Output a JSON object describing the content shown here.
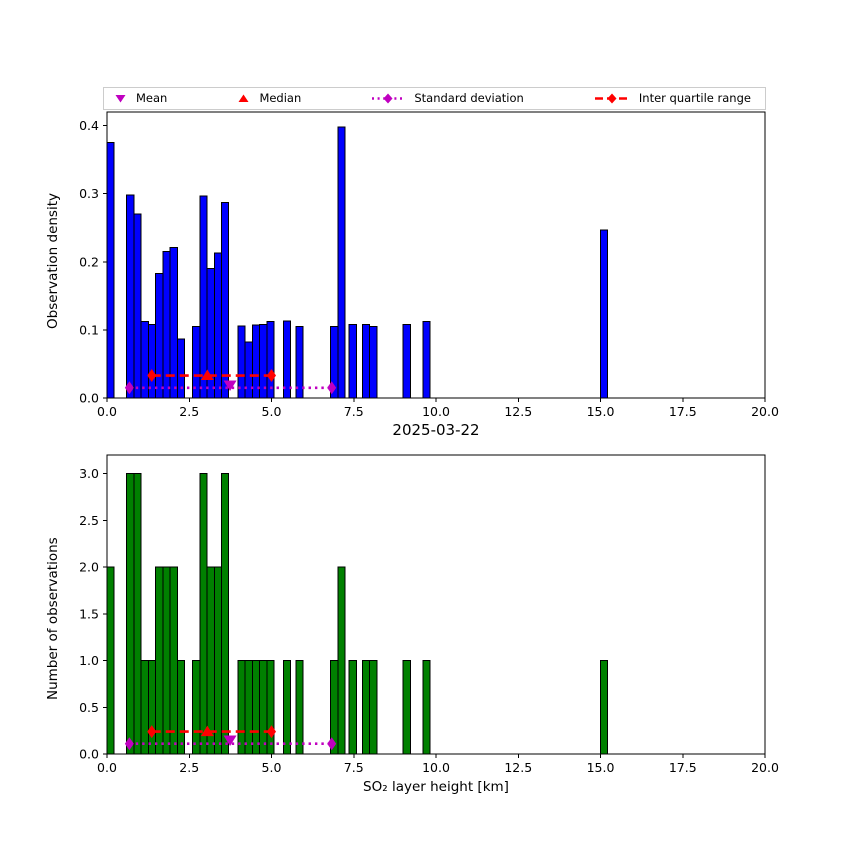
{
  "figure": {
    "background": "#ffffff",
    "title": "2025-03-22"
  },
  "legend": {
    "items": [
      {
        "label": "Mean",
        "icon": "triangle-down-icon",
        "color": "#c000c0"
      },
      {
        "label": "Median",
        "icon": "triangle-up-icon",
        "color": "#ff0000"
      },
      {
        "label": "Standard deviation",
        "icon": "diamond-dotted-line-icon",
        "color": "#c000c0"
      },
      {
        "label": "Inter quartile range",
        "icon": "diamond-dashed-line-icon",
        "color": "#ff0000"
      }
    ]
  },
  "chart_data": [
    {
      "type": "bar",
      "id": "density",
      "ylabel": "Observation density",
      "bar_color": "#0000ff",
      "bar_edge_color": "#000000",
      "bin_width_km": 0.22,
      "xlim": [
        0,
        20
      ],
      "ylim": [
        0,
        0.42
      ],
      "xticks": [
        0,
        2.5,
        5,
        7.5,
        10,
        12.5,
        15,
        17.5,
        20
      ],
      "xtick_labels": [
        "0.0",
        "2.5",
        "5.0",
        "7.5",
        "10.0",
        "12.5",
        "15.0",
        "17.5",
        "20.0"
      ],
      "yticks": [
        0,
        0.1,
        0.2,
        0.3,
        0.4
      ],
      "ytick_labels": [
        "0.0",
        "0.1",
        "0.2",
        "0.3",
        "0.4"
      ],
      "grid": false,
      "bars": [
        {
          "x": 0.0,
          "h": 0.375
        },
        {
          "x": 0.6,
          "h": 0.298
        },
        {
          "x": 0.82,
          "h": 0.27
        },
        {
          "x": 1.04,
          "h": 0.112
        },
        {
          "x": 1.26,
          "h": 0.108
        },
        {
          "x": 1.48,
          "h": 0.183
        },
        {
          "x": 1.7,
          "h": 0.215
        },
        {
          "x": 1.92,
          "h": 0.221
        },
        {
          "x": 2.14,
          "h": 0.087
        },
        {
          "x": 2.6,
          "h": 0.105
        },
        {
          "x": 2.82,
          "h": 0.297
        },
        {
          "x": 3.04,
          "h": 0.19
        },
        {
          "x": 3.26,
          "h": 0.213
        },
        {
          "x": 3.48,
          "h": 0.287
        },
        {
          "x": 3.98,
          "h": 0.106
        },
        {
          "x": 4.2,
          "h": 0.082
        },
        {
          "x": 4.42,
          "h": 0.107
        },
        {
          "x": 4.64,
          "h": 0.108
        },
        {
          "x": 4.86,
          "h": 0.112
        },
        {
          "x": 5.36,
          "h": 0.113
        },
        {
          "x": 5.74,
          "h": 0.105
        },
        {
          "x": 6.8,
          "h": 0.105
        },
        {
          "x": 7.02,
          "h": 0.398
        },
        {
          "x": 7.36,
          "h": 0.108
        },
        {
          "x": 7.76,
          "h": 0.108
        },
        {
          "x": 7.98,
          "h": 0.105
        },
        {
          "x": 9.0,
          "h": 0.108
        },
        {
          "x": 9.6,
          "h": 0.112
        },
        {
          "x": 15.0,
          "h": 0.247
        }
      ],
      "overlay": {
        "mean_km": 3.74,
        "mean_y": 0.019,
        "median_km": 3.05,
        "median_y": 0.033,
        "std_range_km": [
          0.68,
          6.83
        ],
        "std_y": 0.015,
        "iqr_range_km": [
          1.36,
          5.0
        ],
        "iqr_y": 0.033,
        "mean_color": "#c000c0",
        "median_color": "#ff0000",
        "std_color": "#c000c0",
        "iqr_color": "#ff0000"
      }
    },
    {
      "type": "bar",
      "id": "counts",
      "title": "2025-03-22",
      "ylabel": "Number of observations",
      "xlabel": "SO₂ layer height [km]",
      "bar_color": "#008000",
      "bar_edge_color": "#000000",
      "bin_width_km": 0.22,
      "xlim": [
        0,
        20
      ],
      "ylim": [
        0,
        3.2
      ],
      "xticks": [
        0,
        2.5,
        5,
        7.5,
        10,
        12.5,
        15,
        17.5,
        20
      ],
      "xtick_labels": [
        "0.0",
        "2.5",
        "5.0",
        "7.5",
        "10.0",
        "12.5",
        "15.0",
        "17.5",
        "20.0"
      ],
      "yticks": [
        0,
        0.5,
        1,
        1.5,
        2,
        2.5,
        3
      ],
      "ytick_labels": [
        "0.0",
        "0.5",
        "1.0",
        "1.5",
        "2.0",
        "2.5",
        "3.0"
      ],
      "grid": false,
      "bars": [
        {
          "x": 0.0,
          "h": 2
        },
        {
          "x": 0.6,
          "h": 3
        },
        {
          "x": 0.82,
          "h": 3
        },
        {
          "x": 1.04,
          "h": 1
        },
        {
          "x": 1.26,
          "h": 1
        },
        {
          "x": 1.48,
          "h": 2
        },
        {
          "x": 1.7,
          "h": 2
        },
        {
          "x": 1.92,
          "h": 2
        },
        {
          "x": 2.14,
          "h": 1
        },
        {
          "x": 2.6,
          "h": 1
        },
        {
          "x": 2.82,
          "h": 3
        },
        {
          "x": 3.04,
          "h": 2
        },
        {
          "x": 3.26,
          "h": 2
        },
        {
          "x": 3.48,
          "h": 3
        },
        {
          "x": 3.98,
          "h": 1
        },
        {
          "x": 4.2,
          "h": 1
        },
        {
          "x": 4.42,
          "h": 1
        },
        {
          "x": 4.64,
          "h": 1
        },
        {
          "x": 4.86,
          "h": 1
        },
        {
          "x": 5.36,
          "h": 1
        },
        {
          "x": 5.74,
          "h": 1
        },
        {
          "x": 6.8,
          "h": 1
        },
        {
          "x": 7.02,
          "h": 2
        },
        {
          "x": 7.36,
          "h": 1
        },
        {
          "x": 7.76,
          "h": 1
        },
        {
          "x": 7.98,
          "h": 1
        },
        {
          "x": 9.0,
          "h": 1
        },
        {
          "x": 9.6,
          "h": 1
        },
        {
          "x": 15.0,
          "h": 1
        }
      ],
      "overlay": {
        "mean_km": 3.74,
        "mean_y": 0.15,
        "median_km": 3.05,
        "median_y": 0.24,
        "std_range_km": [
          0.68,
          6.83
        ],
        "std_y": 0.11,
        "iqr_range_km": [
          1.36,
          5.0
        ],
        "iqr_y": 0.24,
        "mean_color": "#c000c0",
        "median_color": "#ff0000",
        "std_color": "#c000c0",
        "iqr_color": "#ff0000"
      }
    }
  ]
}
